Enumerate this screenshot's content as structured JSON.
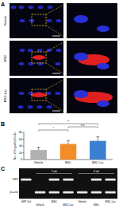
{
  "panel_labels": [
    "A",
    "B",
    "C"
  ],
  "microscopy": {
    "rows": [
      "Vehicle",
      "MSC",
      "MSC-Luc"
    ]
  },
  "chart_data": {
    "type": "bar",
    "y_label": "No. of Engrafted Cells",
    "categories": [
      "Vehicle",
      "MSC",
      "MSC-Luc"
    ],
    "values": [
      28,
      46,
      55
    ],
    "errors": [
      8,
      10,
      12
    ],
    "colors": [
      "#b0b0b0",
      "#f28c28",
      "#3a7fd0"
    ],
    "ylim": [
      0,
      80
    ],
    "yticks": [
      0,
      20,
      40,
      60,
      80
    ],
    "significance": [
      {
        "from": 0,
        "to": 1,
        "label": "*"
      },
      {
        "from": 0,
        "to": 2,
        "label": "**"
      },
      {
        "from": 1,
        "to": 2,
        "label": "n.s."
      }
    ]
  },
  "gel": {
    "lanes": [
      "GFP Ctrl",
      "Vehicle",
      "MSC",
      "MSC-Luc",
      "Vehicle",
      "MSC",
      "MSC-Luc"
    ],
    "groups": [
      {
        "label": "1 wk",
        "from": 1,
        "to": 3
      },
      {
        "label": "4 wk",
        "from": 4,
        "to": 6
      }
    ],
    "rows": [
      {
        "label": "GFP",
        "bands": [
          true,
          false,
          true,
          true,
          false,
          true,
          true
        ]
      },
      {
        "label": "β-actin",
        "bands": [
          false,
          true,
          true,
          true,
          true,
          true,
          true
        ]
      }
    ]
  }
}
